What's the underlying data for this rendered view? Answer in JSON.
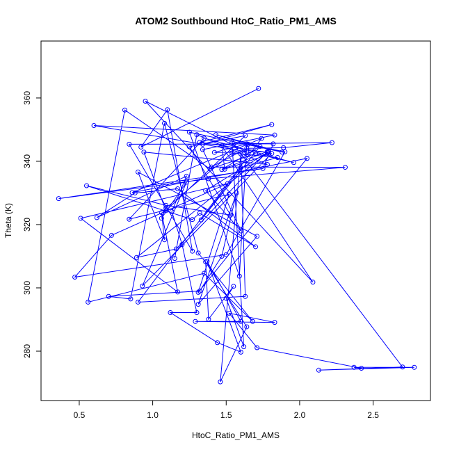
{
  "chart_data": {
    "type": "line",
    "title": "ATOM2 Southbound HtoC_Ratio_PM1_AMS",
    "xlabel": "HtoC_Ratio_PM1_AMS",
    "ylabel": "Theta (K)",
    "xlim": [
      0.24,
      2.89
    ],
    "ylim": [
      264.4,
      378.0
    ],
    "xticks": [
      0.5,
      1.0,
      1.5,
      2.0,
      2.5
    ],
    "xtick_labels": [
      "0.5",
      "1.0",
      "1.5",
      "2.0",
      "2.5"
    ],
    "yticks": [
      280,
      300,
      320,
      340,
      360
    ],
    "ytick_labels": [
      "280",
      "300",
      "320",
      "340",
      "360"
    ],
    "series": [
      {
        "name": "ATOM2 Southbound",
        "color": "#0000ff",
        "points": [
          [
            1.72,
            363.0
          ],
          [
            0.92,
            344.5
          ],
          [
            1.1,
            356.3
          ],
          [
            1.27,
            311.6
          ],
          [
            0.84,
            345.4
          ],
          [
            1.82,
            345.5
          ],
          [
            1.75,
            337.7
          ],
          [
            0.36,
            328.2
          ],
          [
            1.38,
            334.5
          ],
          [
            2.31,
            338.1
          ],
          [
            1.4,
            338.2
          ],
          [
            1.64,
            344.1
          ],
          [
            1.89,
            344.3
          ],
          [
            2.22,
            345.9
          ],
          [
            1.34,
            345.4
          ],
          [
            1.81,
            351.6
          ],
          [
            1.32,
            346.0
          ],
          [
            1.78,
            342.8
          ],
          [
            1.36,
            330.7
          ],
          [
            1.6,
            318.0
          ],
          [
            1.34,
            343.7
          ],
          [
            1.83,
            348.3
          ],
          [
            0.6,
            351.3
          ],
          [
            1.64,
            343.0
          ],
          [
            0.95,
            359.0
          ],
          [
            2.09,
            301.8
          ],
          [
            1.47,
            344.9
          ],
          [
            1.49,
            337.5
          ],
          [
            1.81,
            342.5
          ],
          [
            0.93,
            300.6
          ],
          [
            1.23,
            333.4
          ],
          [
            1.06,
            322.0
          ],
          [
            1.09,
            325.2
          ],
          [
            1.54,
            342.6
          ],
          [
            1.85,
            341.2
          ],
          [
            1.6,
            338.0
          ],
          [
            1.33,
            321.5
          ],
          [
            1.73,
            344.7
          ],
          [
            1.47,
            337.4
          ],
          [
            1.78,
            343.1
          ],
          [
            1.16,
            312.3
          ],
          [
            0.89,
            309.6
          ],
          [
            1.79,
            343.0
          ],
          [
            1.42,
            342.8
          ],
          [
            1.64,
            345.5
          ],
          [
            1.59,
            303.7
          ],
          [
            1.25,
            349.2
          ],
          [
            1.88,
            342.9
          ],
          [
            1.43,
            348.4
          ],
          [
            1.65,
            345.4
          ],
          [
            1.9,
            343.0
          ],
          [
            1.5,
            310.5
          ],
          [
            0.47,
            303.4
          ],
          [
            0.72,
            316.6
          ],
          [
            1.51,
            333.0
          ],
          [
            0.51,
            322.0
          ],
          [
            1.17,
            298.7
          ],
          [
            1.06,
            323.8
          ],
          [
            1.08,
            315.2
          ],
          [
            0.9,
            336.6
          ],
          [
            1.71,
            316.3
          ],
          [
            1.31,
            294.8
          ],
          [
            1.57,
            330.0
          ],
          [
            1.47,
            310.0
          ],
          [
            1.32,
            299.0
          ],
          [
            0.7,
            297.3
          ],
          [
            0.85,
            296.5
          ],
          [
            1.08,
            352.0
          ],
          [
            1.31,
            311.0
          ],
          [
            1.68,
            289.4
          ],
          [
            1.35,
            304.6
          ],
          [
            0.56,
            295.5
          ],
          [
            0.81,
            356.2
          ],
          [
            1.39,
            337.6
          ],
          [
            1.7,
            342.4
          ],
          [
            1.96,
            339.6
          ],
          [
            1.35,
            347.3
          ],
          [
            0.84,
            321.7
          ],
          [
            1.52,
            329.6
          ],
          [
            1.31,
            298.6
          ],
          [
            2.05,
            340.9
          ],
          [
            0.86,
            330.1
          ],
          [
            1.74,
            347.2
          ],
          [
            0.9,
            295.5
          ],
          [
            1.63,
            297.3
          ],
          [
            1.6,
            342.3
          ],
          [
            1.46,
            270.3
          ],
          [
            1.64,
            287.7
          ],
          [
            1.36,
            308.2
          ],
          [
            1.38,
            290.1
          ],
          [
            1.55,
            300.5
          ],
          [
            1.5,
            296.7
          ],
          [
            1.62,
            281.4
          ],
          [
            1.54,
            346.0
          ],
          [
            2.7,
            275.0
          ],
          [
            2.13,
            274.0
          ],
          [
            2.78,
            274.9
          ],
          [
            2.37,
            274.9
          ],
          [
            2.42,
            274.6
          ],
          [
            1.71,
            281.1
          ],
          [
            1.52,
            292.0
          ],
          [
            1.83,
            289.1
          ],
          [
            1.29,
            289.4
          ],
          [
            1.6,
            289.4
          ],
          [
            1.37,
            308.4
          ],
          [
            1.6,
            279.7
          ],
          [
            1.44,
            282.7
          ],
          [
            1.12,
            292.2
          ],
          [
            1.3,
            292.2
          ],
          [
            1.2,
            313.7
          ],
          [
            1.13,
            324.1
          ],
          [
            1.23,
            335.3
          ],
          [
            0.62,
            322.2
          ],
          [
            0.88,
            330.0
          ],
          [
            1.17,
            331.3
          ],
          [
            1.7,
            313.0
          ],
          [
            1.32,
            323.6
          ],
          [
            1.27,
            321.6
          ],
          [
            0.55,
            332.3
          ],
          [
            1.09,
            326.1
          ],
          [
            1.53,
            323.0
          ],
          [
            1.25,
            344.6
          ],
          [
            1.63,
            348.1
          ],
          [
            1.09,
            324.4
          ],
          [
            0.94,
            342.9
          ],
          [
            1.78,
            339.0
          ],
          [
            1.3,
            348.4
          ],
          [
            1.15,
            309.3
          ]
        ]
      }
    ]
  }
}
